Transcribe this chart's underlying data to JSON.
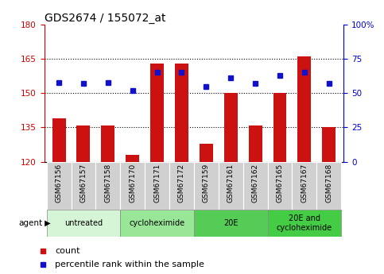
{
  "title": "GDS2674 / 155072_at",
  "samples": [
    "GSM67156",
    "GSM67157",
    "GSM67158",
    "GSM67170",
    "GSM67171",
    "GSM67172",
    "GSM67159",
    "GSM67161",
    "GSM67162",
    "GSM67165",
    "GSM67167",
    "GSM67168"
  ],
  "count_values": [
    139,
    136,
    136,
    123,
    163,
    163,
    128,
    150,
    136,
    150,
    166,
    135
  ],
  "percentile_values": [
    58,
    57,
    58,
    52,
    65,
    65,
    55,
    61,
    57,
    63,
    65,
    57
  ],
  "ylim_left": [
    120,
    180
  ],
  "ylim_right": [
    0,
    100
  ],
  "yticks_left": [
    120,
    135,
    150,
    165,
    180
  ],
  "yticks_right": [
    0,
    25,
    50,
    75,
    100
  ],
  "bar_color": "#cc1111",
  "dot_color": "#1111cc",
  "bg_color": "#ffffff",
  "agent_groups": [
    {
      "label": "untreated",
      "start": 0,
      "end": 3,
      "color": "#d6f5d6"
    },
    {
      "label": "cycloheximide",
      "start": 3,
      "end": 6,
      "color": "#99e699"
    },
    {
      "label": "20E",
      "start": 6,
      "end": 9,
      "color": "#55cc55"
    },
    {
      "label": "20E and\ncycloheximide",
      "start": 9,
      "end": 12,
      "color": "#44cc44"
    }
  ],
  "tick_color_left": "#cc0000",
  "tick_color_right": "#0000cc",
  "title_fontsize": 10,
  "tick_fontsize": 7.5,
  "label_fontsize": 6.5,
  "agent_fontsize": 7,
  "legend_fontsize": 8
}
